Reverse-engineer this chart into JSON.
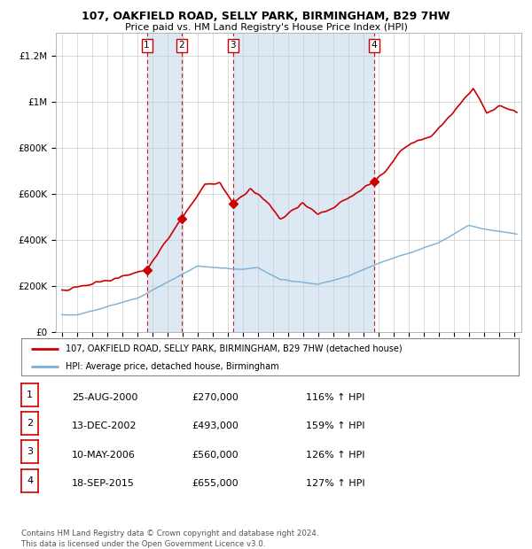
{
  "title1": "107, OAKFIELD ROAD, SELLY PARK, BIRMINGHAM, B29 7HW",
  "title2": "Price paid vs. HM Land Registry's House Price Index (HPI)",
  "ylabel_ticks": [
    "£0",
    "£200K",
    "£400K",
    "£600K",
    "£800K",
    "£1M",
    "£1.2M"
  ],
  "ytick_values": [
    0,
    200000,
    400000,
    600000,
    800000,
    1000000,
    1200000
  ],
  "ylim": [
    0,
    1300000
  ],
  "xlim_start": 1994.6,
  "xlim_end": 2025.5,
  "legend_line1": "107, OAKFIELD ROAD, SELLY PARK, BIRMINGHAM, B29 7HW (detached house)",
  "legend_line2": "HPI: Average price, detached house, Birmingham",
  "red_line_color": "#cc0000",
  "blue_line_color": "#7bafd4",
  "background_color": "#ffffff",
  "plot_bg_color": "#f0f4f8",
  "grid_color": "#cccccc",
  "band_color": "#dce9f5",
  "sale_markers": [
    {
      "num": 1,
      "year": 2000.64,
      "price": 270000,
      "date": "25-AUG-2000",
      "pct": "116%"
    },
    {
      "num": 2,
      "year": 2002.95,
      "price": 493000,
      "date": "13-DEC-2002",
      "pct": "159%"
    },
    {
      "num": 3,
      "year": 2006.36,
      "price": 560000,
      "date": "10-MAY-2006",
      "pct": "126%"
    },
    {
      "num": 4,
      "year": 2015.72,
      "price": 655000,
      "date": "18-SEP-2015",
      "pct": "127%"
    }
  ],
  "table_rows": [
    {
      "num": 1,
      "date": "25-AUG-2000",
      "price": "£270,000",
      "pct": "116% ↑ HPI"
    },
    {
      "num": 2,
      "date": "13-DEC-2002",
      "price": "£493,000",
      "pct": "159% ↑ HPI"
    },
    {
      "num": 3,
      "date": "10-MAY-2006",
      "price": "£560,000",
      "pct": "126% ↑ HPI"
    },
    {
      "num": 4,
      "date": "18-SEP-2015",
      "price": "£655,000",
      "pct": "127% ↑ HPI"
    }
  ],
  "footer": "Contains HM Land Registry data © Crown copyright and database right 2024.\nThis data is licensed under the Open Government Licence v3.0."
}
